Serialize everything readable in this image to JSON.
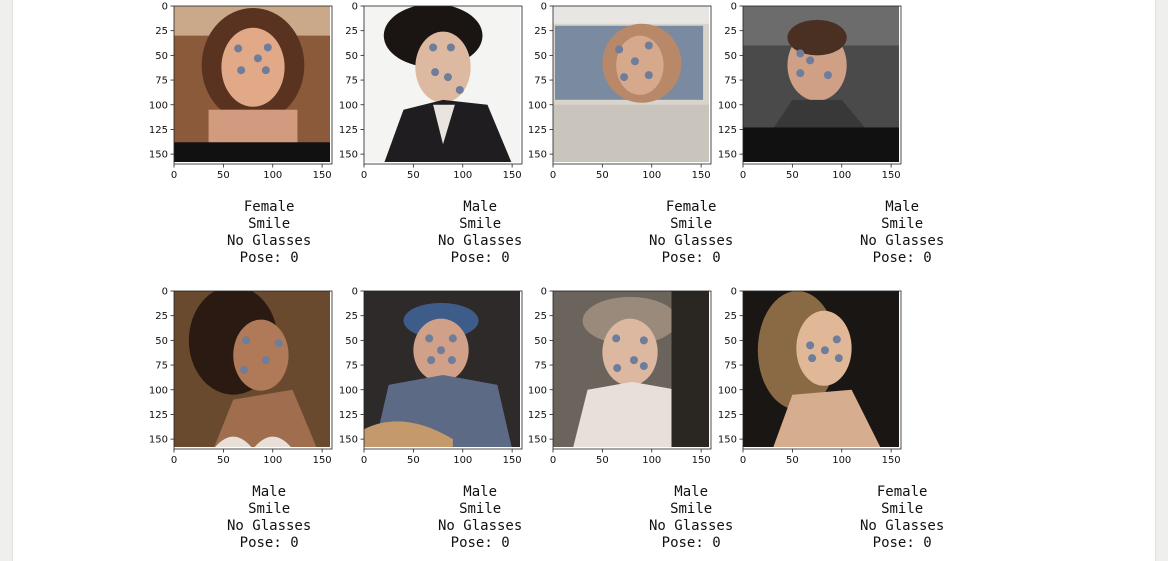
{
  "chart_data": [
    {
      "type": "scatter",
      "image": "female-portrait-1",
      "xlim": [
        0,
        160
      ],
      "ylim": [
        160,
        0
      ],
      "xticks": [
        0,
        50,
        100,
        150
      ],
      "yticks": [
        0,
        25,
        50,
        75,
        100,
        125,
        150
      ],
      "points": [
        [
          65,
          43
        ],
        [
          95,
          42
        ],
        [
          85,
          53
        ],
        [
          68,
          65
        ],
        [
          93,
          65
        ]
      ],
      "caption": [
        "Female",
        "Smile",
        "No Glasses",
        "Pose: 0"
      ]
    },
    {
      "type": "scatter",
      "image": "male-portrait-2",
      "xlim": [
        0,
        160
      ],
      "ylim": [
        160,
        0
      ],
      "xticks": [
        0,
        50,
        100,
        150
      ],
      "yticks": [
        0,
        25,
        50,
        75,
        100,
        125,
        150
      ],
      "points": [
        [
          70,
          42
        ],
        [
          88,
          42
        ],
        [
          72,
          67
        ],
        [
          85,
          72
        ],
        [
          97,
          85
        ]
      ],
      "caption": [
        "Male",
        "Smile",
        "No Glasses",
        "Pose: 0"
      ]
    },
    {
      "type": "scatter",
      "image": "female-newspaper-3",
      "xlim": [
        0,
        160
      ],
      "ylim": [
        160,
        0
      ],
      "xticks": [
        0,
        50,
        100,
        150
      ],
      "yticks": [
        0,
        25,
        50,
        75,
        100,
        125,
        150
      ],
      "points": [
        [
          67,
          44
        ],
        [
          97,
          40
        ],
        [
          83,
          56
        ],
        [
          72,
          72
        ],
        [
          97,
          70
        ]
      ],
      "caption": [
        "Female",
        "Smile",
        "No Glasses",
        "Pose: 0"
      ]
    },
    {
      "type": "scatter",
      "image": "male-crowd-4",
      "xlim": [
        0,
        160
      ],
      "ylim": [
        160,
        0
      ],
      "xticks": [
        0,
        50,
        100,
        150
      ],
      "yticks": [
        0,
        25,
        50,
        75,
        100,
        125,
        150
      ],
      "points": [
        [
          58,
          48
        ],
        [
          68,
          55
        ],
        [
          58,
          68
        ],
        [
          86,
          70
        ]
      ],
      "caption": [
        "Male",
        "Smile",
        "No Glasses",
        "Pose: 0"
      ]
    },
    {
      "type": "scatter",
      "image": "female-portrait-5",
      "xlim": [
        0,
        160
      ],
      "ylim": [
        160,
        0
      ],
      "xticks": [
        0,
        50,
        100,
        150
      ],
      "yticks": [
        0,
        25,
        50,
        75,
        100,
        125,
        150
      ],
      "points": [
        [
          73,
          50
        ],
        [
          106,
          53
        ],
        [
          93,
          70
        ],
        [
          71,
          80
        ]
      ],
      "caption": [
        "Male",
        "Smile",
        "No Glasses",
        "Pose: 0"
      ]
    },
    {
      "type": "scatter",
      "image": "male-cap-6",
      "xlim": [
        0,
        160
      ],
      "ylim": [
        160,
        0
      ],
      "xticks": [
        0,
        50,
        100,
        150
      ],
      "yticks": [
        0,
        25,
        50,
        75,
        100,
        125,
        150
      ],
      "points": [
        [
          66,
          48
        ],
        [
          90,
          48
        ],
        [
          78,
          60
        ],
        [
          68,
          70
        ],
        [
          89,
          70
        ]
      ],
      "caption": [
        "Male",
        "Smile",
        "No Glasses",
        "Pose: 0"
      ]
    },
    {
      "type": "scatter",
      "image": "female-hat-7",
      "xlim": [
        0,
        160
      ],
      "ylim": [
        160,
        0
      ],
      "xticks": [
        0,
        50,
        100,
        150
      ],
      "yticks": [
        0,
        25,
        50,
        75,
        100,
        125,
        150
      ],
      "points": [
        [
          64,
          48
        ],
        [
          92,
          50
        ],
        [
          82,
          70
        ],
        [
          65,
          78
        ],
        [
          92,
          76
        ]
      ],
      "caption": [
        "Male",
        "Smile",
        "No Glasses",
        "Pose: 0"
      ]
    },
    {
      "type": "scatter",
      "image": "female-curls-8",
      "xlim": [
        0,
        160
      ],
      "ylim": [
        160,
        0
      ],
      "xticks": [
        0,
        50,
        100,
        150
      ],
      "yticks": [
        0,
        25,
        50,
        75,
        100,
        125,
        150
      ],
      "points": [
        [
          68,
          55
        ],
        [
          95,
          49
        ],
        [
          83,
          60
        ],
        [
          70,
          68
        ],
        [
          97,
          68
        ]
      ],
      "caption": [
        "Female",
        "Smile",
        "No Glasses",
        "Pose: 0"
      ]
    }
  ],
  "colors": {
    "landmark": "#6e7d99",
    "axis": "#222222",
    "page": "#ffffff",
    "margin": "#efefee"
  }
}
